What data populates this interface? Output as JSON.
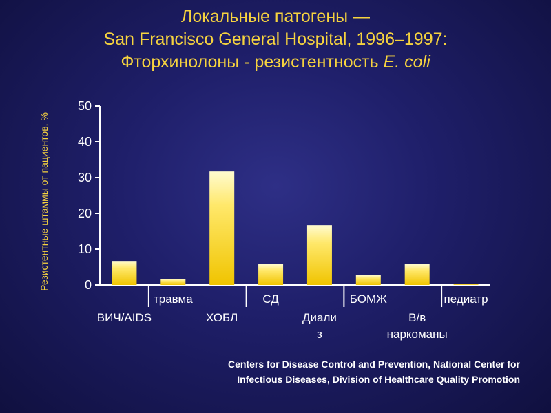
{
  "title": {
    "line1": "Локальные патогены —",
    "line2": "San Francisco General Hospital, 1996–1997:",
    "line3_prefix": "Фторхинолоны - резистентность ",
    "line3_italic": "E. coli"
  },
  "chart_data": {
    "type": "bar",
    "ylabel": "Резистентные штаммы от пациентов, %",
    "ylim": [
      0,
      50
    ],
    "yticks": [
      "0",
      "10",
      "20",
      "30",
      "40",
      "50"
    ],
    "categories": [
      [
        "ВИЧ/AIDS"
      ],
      [
        "травма"
      ],
      [
        "ХОБЛ"
      ],
      [
        "СД"
      ],
      [
        "Диали",
        "з"
      ],
      [
        "БОМЖ"
      ],
      [
        "В/в",
        "наркоманы"
      ],
      [
        "педиатр"
      ]
    ],
    "values": [
      6.7,
      1.6,
      31.7,
      5.8,
      16.7,
      2.7,
      5.8,
      0.3
    ],
    "bar_color_top": "#fffbd0",
    "bar_color_bottom": "#f0c400",
    "axis_color": "#ffffff"
  },
  "footer": {
    "line1": "Centers for Disease Control and Prevention, National Center for",
    "line2": "Infectious Diseases, Division of Healthcare Quality Promotion"
  }
}
